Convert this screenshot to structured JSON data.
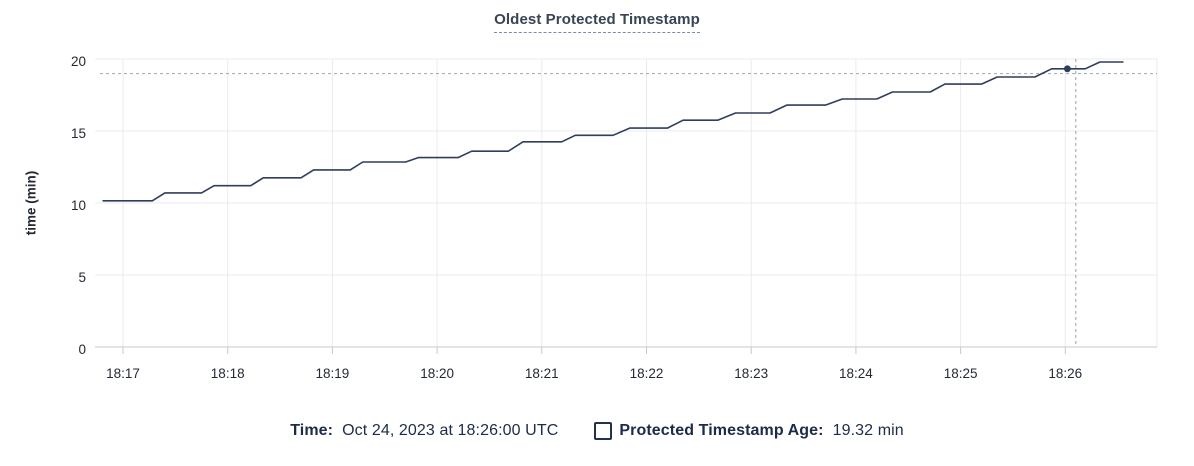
{
  "title": {
    "text": "Oldest Protected Timestamp"
  },
  "footer": {
    "time_label": "Time:",
    "time_value": "Oct 24, 2023 at 18:26:00 UTC",
    "series_label": "Protected Timestamp Age:",
    "series_value": "19.32 min"
  },
  "chart_data": {
    "type": "line",
    "title": "Oldest Protected Timestamp",
    "xlabel": "",
    "ylabel": "time (min)",
    "ylim": [
      0,
      20
    ],
    "y_ticks": [
      0,
      5,
      10,
      15,
      20
    ],
    "x_unit": "minutes after 18:00 (times shown as UTC clock time)",
    "xlim": [
      16.73,
      26.88
    ],
    "x_ticks": [
      {
        "t": 17,
        "label": "18:17"
      },
      {
        "t": 18,
        "label": "18:18"
      },
      {
        "t": 19,
        "label": "18:19"
      },
      {
        "t": 20,
        "label": "18:20"
      },
      {
        "t": 21,
        "label": "18:21"
      },
      {
        "t": 22,
        "label": "18:22"
      },
      {
        "t": 23,
        "label": "18:23"
      },
      {
        "t": 24,
        "label": "18:24"
      },
      {
        "t": 25,
        "label": "18:25"
      },
      {
        "t": 26,
        "label": "18:26"
      }
    ],
    "grid": true,
    "legend_position": "bottom",
    "series": [
      {
        "name": "Protected Timestamp Age",
        "unit": "min",
        "points": [
          [
            16.81,
            10.15
          ],
          [
            17.28,
            10.15
          ],
          [
            17.4,
            10.7
          ],
          [
            17.75,
            10.7
          ],
          [
            17.87,
            11.2
          ],
          [
            18.22,
            11.2
          ],
          [
            18.34,
            11.75
          ],
          [
            18.7,
            11.75
          ],
          [
            18.82,
            12.3
          ],
          [
            19.17,
            12.3
          ],
          [
            19.29,
            12.85
          ],
          [
            19.7,
            12.85
          ],
          [
            19.82,
            13.15
          ],
          [
            20.2,
            13.15
          ],
          [
            20.33,
            13.6
          ],
          [
            20.68,
            13.6
          ],
          [
            20.82,
            14.25
          ],
          [
            21.19,
            14.25
          ],
          [
            21.32,
            14.7
          ],
          [
            21.68,
            14.7
          ],
          [
            21.84,
            15.2
          ],
          [
            22.2,
            15.2
          ],
          [
            22.35,
            15.75
          ],
          [
            22.68,
            15.75
          ],
          [
            22.85,
            16.25
          ],
          [
            23.18,
            16.25
          ],
          [
            23.34,
            16.8
          ],
          [
            23.71,
            16.8
          ],
          [
            23.87,
            17.22
          ],
          [
            24.2,
            17.22
          ],
          [
            24.35,
            17.71
          ],
          [
            24.71,
            17.71
          ],
          [
            24.85,
            18.26
          ],
          [
            25.2,
            18.26
          ],
          [
            25.35,
            18.75
          ],
          [
            25.71,
            18.75
          ],
          [
            25.87,
            19.32
          ],
          [
            26.19,
            19.32
          ],
          [
            26.33,
            19.79
          ],
          [
            26.55,
            19.79
          ]
        ]
      }
    ],
    "hover": {
      "time_label": "18:26:00 UTC",
      "point": [
        26.02,
        19.32
      ],
      "cursor": [
        26.1,
        18.99
      ]
    },
    "colors": {
      "line": "#2f3e5c",
      "grid": "#ebebeb",
      "axis": "#c9c9c9",
      "crosshair": "#a3b3c2",
      "tick_text": "#242a35",
      "title_text": "#394455",
      "footer_text": "#1c2b49"
    }
  }
}
